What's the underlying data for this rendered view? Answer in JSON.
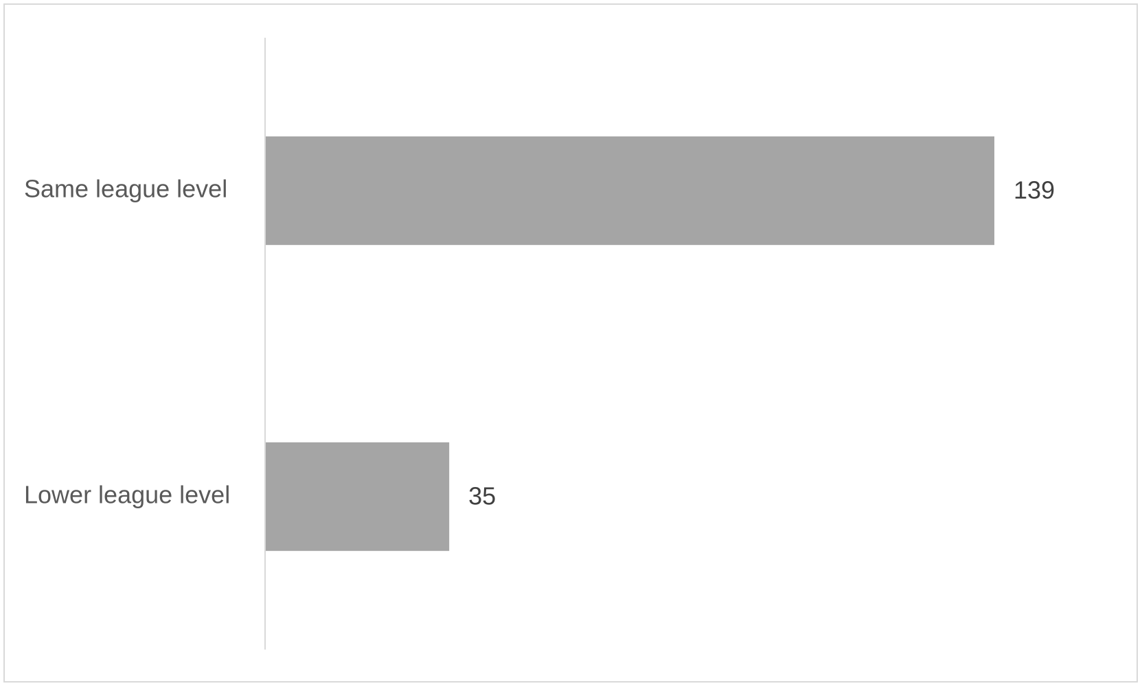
{
  "chart_data": {
    "type": "bar",
    "orientation": "horizontal",
    "title": "",
    "xlabel": "",
    "ylabel": "",
    "categories": [
      "Same league level",
      "Lower league level"
    ],
    "values": [
      139,
      35
    ],
    "data_labels": [
      "139",
      "35"
    ],
    "xlim": [
      0,
      158
    ],
    "grid": false,
    "legend": "none",
    "bar_color": "#a5a5a5",
    "axis_color": "#d9d9d9"
  }
}
